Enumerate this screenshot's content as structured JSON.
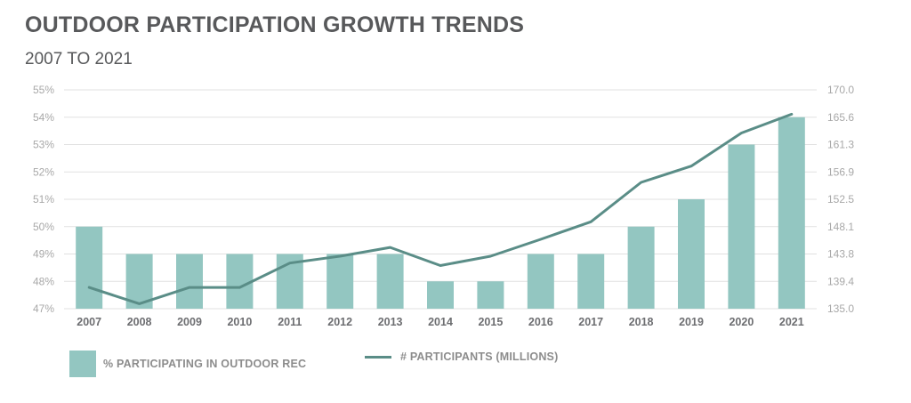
{
  "title": "OUTDOOR PARTICIPATION GROWTH TRENDS",
  "subtitle": "2007 TO 2021",
  "chart_data": {
    "type": "bar",
    "categories": [
      "2007",
      "2008",
      "2009",
      "2010",
      "2011",
      "2012",
      "2013",
      "2014",
      "2015",
      "2016",
      "2017",
      "2018",
      "2019",
      "2020",
      "2021"
    ],
    "series": [
      {
        "name": "% PARTICIPATING IN OUTDOOR REC",
        "type": "bar",
        "axis": "left",
        "values": [
          50,
          49,
          49,
          49,
          49,
          49,
          49,
          48,
          48,
          49,
          49,
          50,
          51,
          53,
          54
        ]
      },
      {
        "name": "# PARTICIPANTS (MILLIONS)",
        "type": "line",
        "axis": "right",
        "values": [
          138.4,
          135.8,
          138.4,
          138.4,
          142.3,
          143.4,
          144.8,
          141.9,
          143.4,
          146.1,
          148.9,
          155.2,
          157.8,
          163.1,
          166.1
        ]
      }
    ],
    "y_left": {
      "ylim": [
        47,
        55
      ],
      "ticks": [
        "47%",
        "48%",
        "49%",
        "50%",
        "51%",
        "52%",
        "53%",
        "54%",
        "55%"
      ]
    },
    "y_right": {
      "ylim": [
        135.0,
        170.0
      ],
      "ticks": [
        "135.0",
        "139.4",
        "143.8",
        "148.1",
        "152.5",
        "156.9",
        "161.3",
        "165.6",
        "170.0"
      ]
    },
    "grid": true,
    "legend_position": "bottom-left",
    "colors": {
      "bar": "#93c6c1",
      "line": "#5a8d87",
      "grid": "#e1e1e1",
      "tick": "#a8a8a8",
      "category": "#6d6e71"
    }
  }
}
